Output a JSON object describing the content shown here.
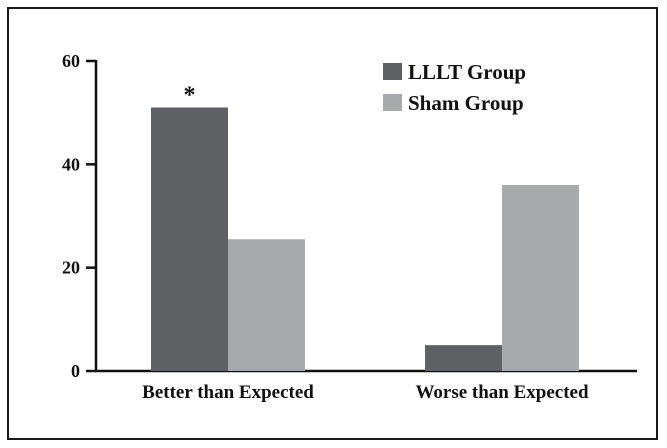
{
  "chart_data": {
    "type": "bar",
    "categories": [
      "Better than Expected",
      "Worse than Expected"
    ],
    "series": [
      {
        "name": "LLLT Group",
        "values": [
          51,
          5
        ],
        "color": "#5f6064"
      },
      {
        "name": "Sham Group",
        "values": [
          25.5,
          36
        ],
        "color": "#a8a9ab"
      }
    ],
    "ylim": [
      0,
      60
    ],
    "yticks": [
      0,
      20,
      40,
      60
    ],
    "legend_position": "top-right",
    "annotations": [
      {
        "text": "*",
        "category": 0,
        "series": 0
      }
    ],
    "grid": false
  }
}
